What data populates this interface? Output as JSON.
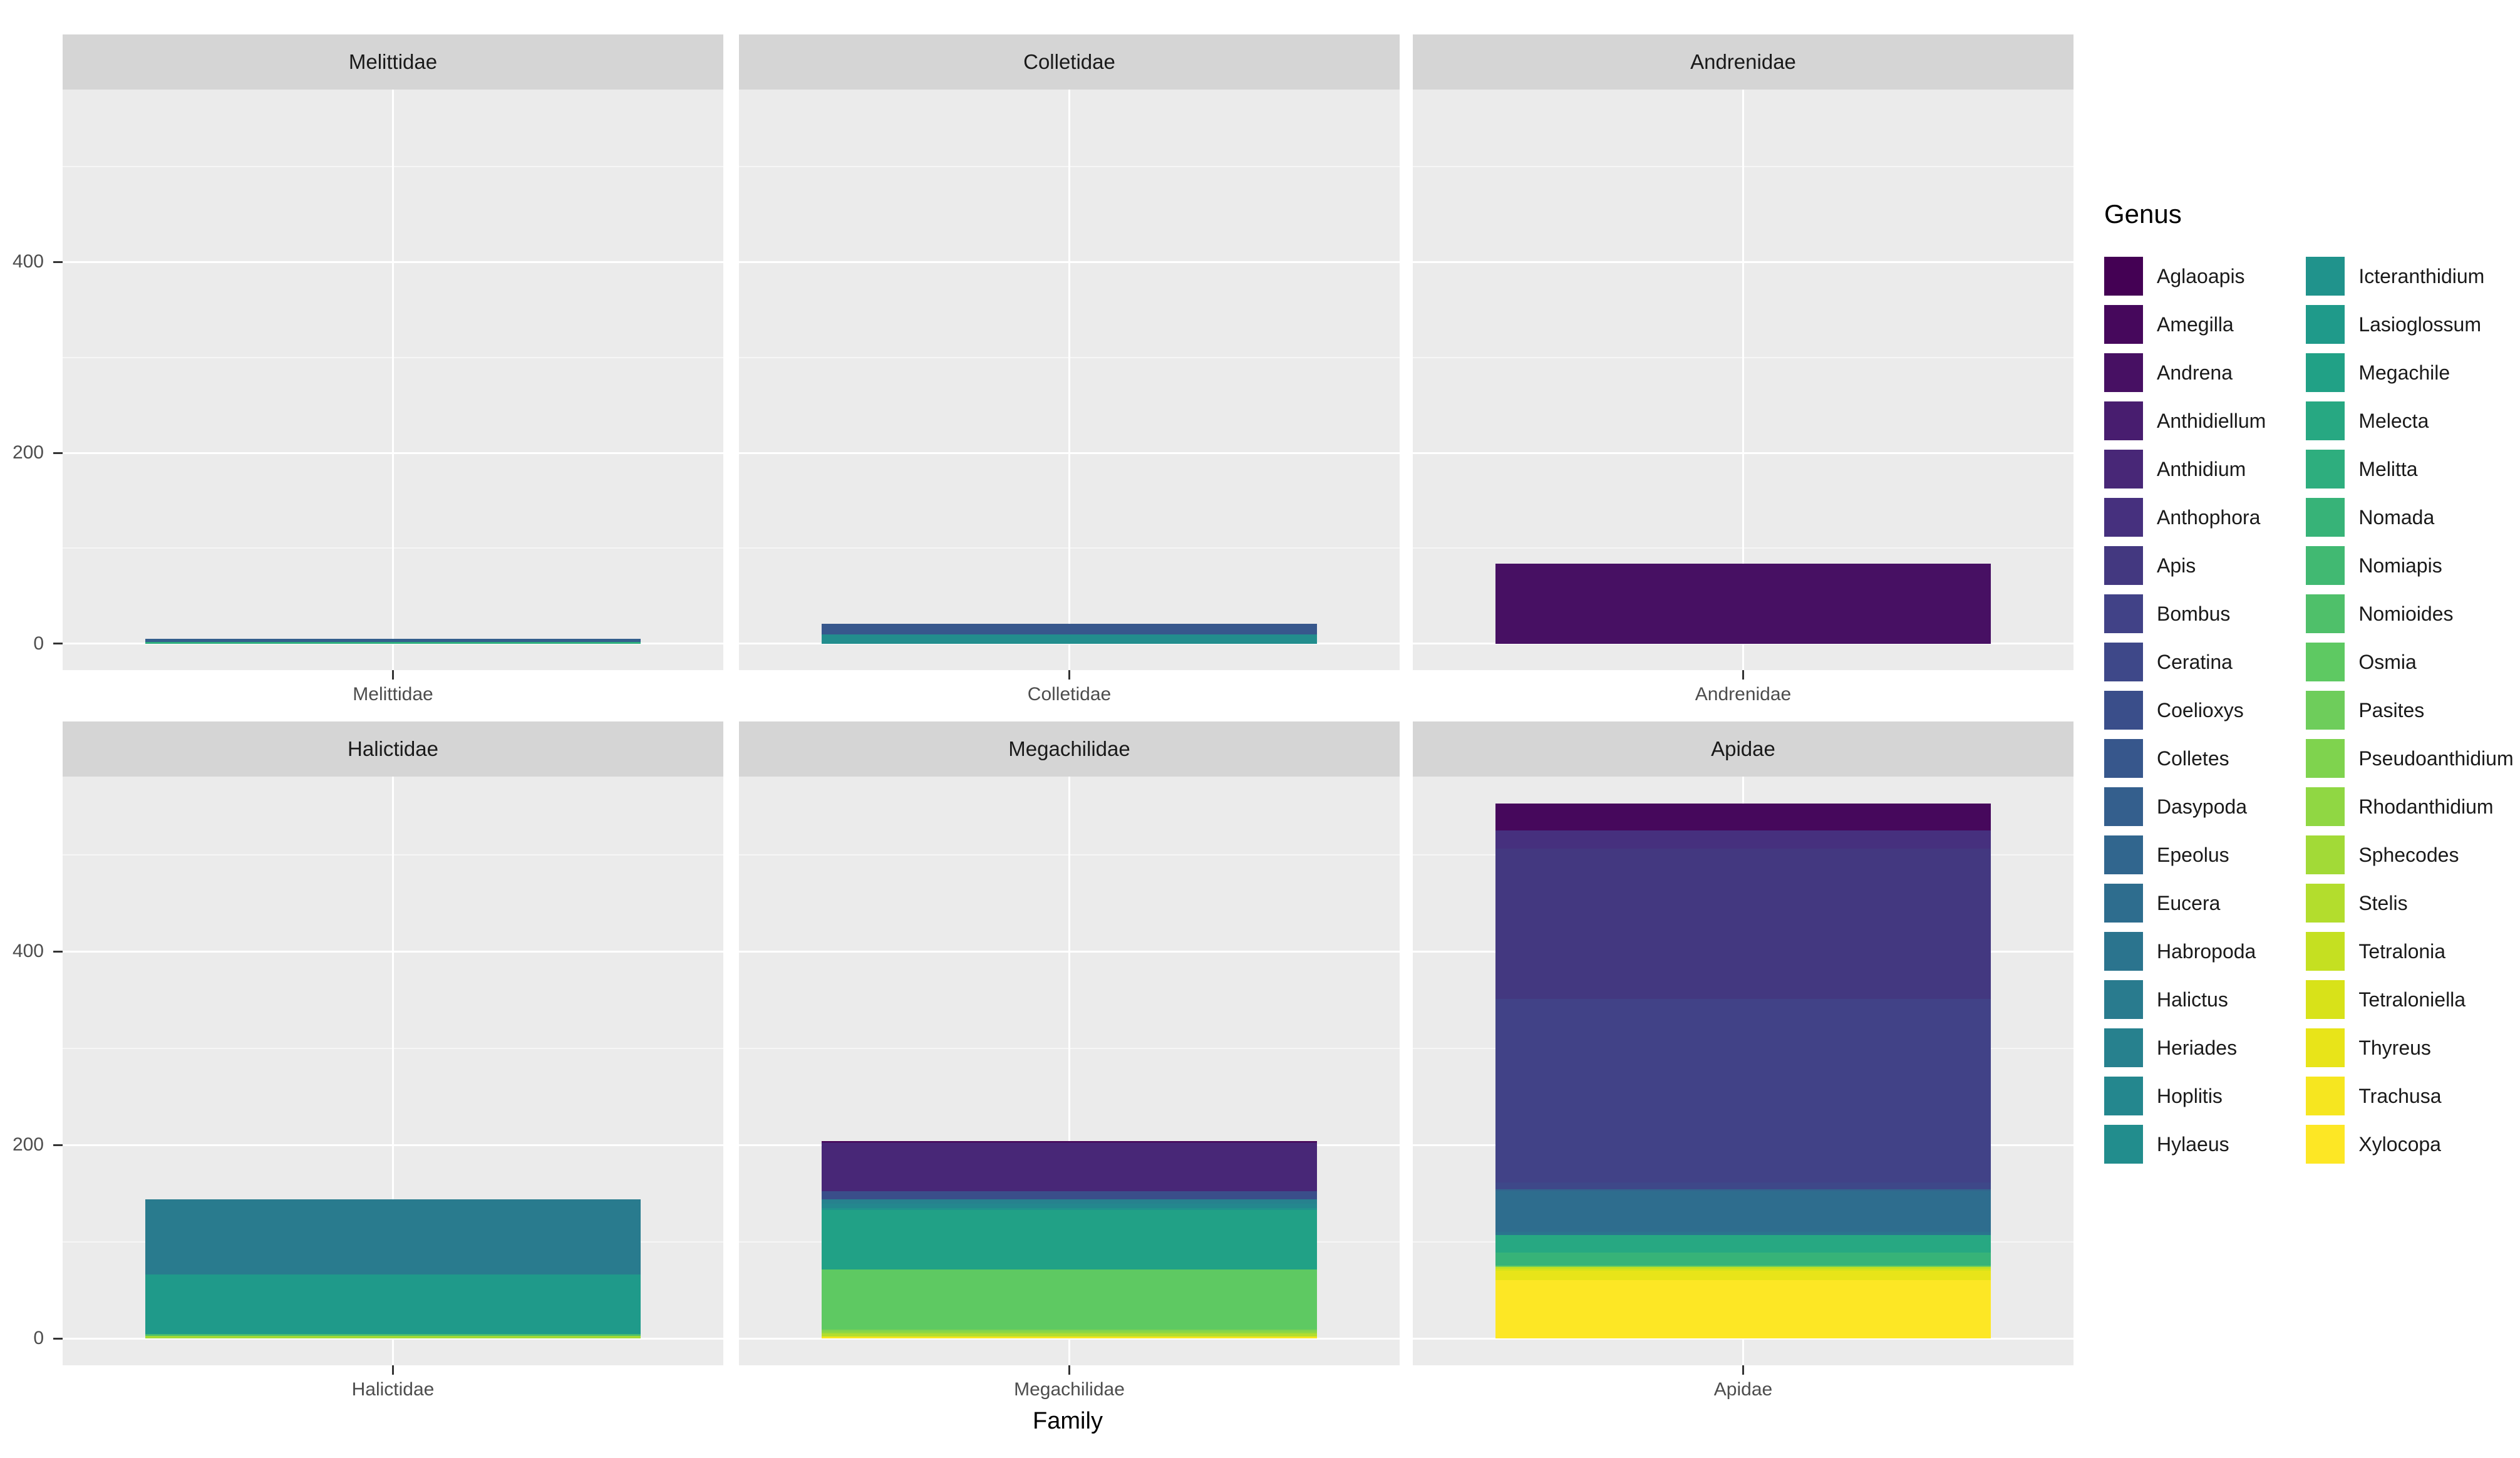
{
  "chart_data": {
    "type": "bar",
    "subtype": "stacked-faceted",
    "title": "",
    "xlabel": "Family",
    "ylabel": "",
    "legend_title": "Genus",
    "y_ticks": [
      0,
      200,
      400
    ],
    "y_minor_ticks": [
      100,
      300,
      500
    ],
    "ylim": [
      -27.65,
      580.65
    ],
    "grid": true,
    "legend_position": "right",
    "facets": [
      {
        "family": "Melittidae",
        "row": 0,
        "col": 0
      },
      {
        "family": "Colletidae",
        "row": 0,
        "col": 1
      },
      {
        "family": "Andrenidae",
        "row": 0,
        "col": 2
      },
      {
        "family": "Halictidae",
        "row": 1,
        "col": 0
      },
      {
        "family": "Megachilidae",
        "row": 1,
        "col": 1
      },
      {
        "family": "Apidae",
        "row": 1,
        "col": 2
      }
    ],
    "genera": [
      {
        "name": "Aglaoapis",
        "color": "#440154"
      },
      {
        "name": "Amegilla",
        "color": "#46085c"
      },
      {
        "name": "Andrena",
        "color": "#471063"
      },
      {
        "name": "Anthidiellum",
        "color": "#481d6f"
      },
      {
        "name": "Anthidium",
        "color": "#482777"
      },
      {
        "name": "Anthophora",
        "color": "#46307e"
      },
      {
        "name": "Apis",
        "color": "#433880"
      },
      {
        "name": "Bombus",
        "color": "#414287"
      },
      {
        "name": "Ceratina",
        "color": "#3e4889"
      },
      {
        "name": "Coelioxys",
        "color": "#3a4e8a"
      },
      {
        "name": "Colletes",
        "color": "#37578c"
      },
      {
        "name": "Dasypoda",
        "color": "#345f8d"
      },
      {
        "name": "Epeolus",
        "color": "#31668e"
      },
      {
        "name": "Eucera",
        "color": "#2e6d8e"
      },
      {
        "name": "Habropoda",
        "color": "#2b748e"
      },
      {
        "name": "Halictus",
        "color": "#297b8e"
      },
      {
        "name": "Heriades",
        "color": "#27818e"
      },
      {
        "name": "Hoplitis",
        "color": "#24878e"
      },
      {
        "name": "Hylaeus",
        "color": "#228d8d"
      },
      {
        "name": "Icteranthidium",
        "color": "#20938c"
      },
      {
        "name": "Lasioglossum",
        "color": "#1f9a8a"
      },
      {
        "name": "Megachile",
        "color": "#21a186"
      },
      {
        "name": "Melecta",
        "color": "#27a882"
      },
      {
        "name": "Melitta",
        "color": "#2eae7e"
      },
      {
        "name": "Nomada",
        "color": "#37b378"
      },
      {
        "name": "Nomiapis",
        "color": "#41b972"
      },
      {
        "name": "Nomioides",
        "color": "#4fc06a"
      },
      {
        "name": "Osmia",
        "color": "#5ec962"
      },
      {
        "name": "Pasites",
        "color": "#6ecd5b"
      },
      {
        "name": "Pseudoanthidium",
        "color": "#7fd34e"
      },
      {
        "name": "Rhodanthidium",
        "color": "#90d743"
      },
      {
        "name": "Sphecodes",
        "color": "#a2da37"
      },
      {
        "name": "Stelis",
        "color": "#b3dd2d"
      },
      {
        "name": "Tetralonia",
        "color": "#c5e021"
      },
      {
        "name": "Tetraloniella",
        "color": "#d8e219"
      },
      {
        "name": "Thyreus",
        "color": "#e8e419"
      },
      {
        "name": "Trachusa",
        "color": "#f6e620"
      },
      {
        "name": "Xylocopa",
        "color": "#fde725"
      }
    ],
    "stacks": {
      "Melittidae": [
        [
          "Dasypoda",
          3
        ],
        [
          "Melitta",
          2
        ]
      ],
      "Colletidae": [
        [
          "Colletes",
          11
        ],
        [
          "Hylaeus",
          10
        ]
      ],
      "Andrenidae": [
        [
          "Andrena",
          84
        ]
      ],
      "Halictidae": [
        [
          "Halictus",
          78
        ],
        [
          "Lasioglossum",
          61
        ],
        [
          "Nomiapis",
          1
        ],
        [
          "Nomioides",
          1
        ],
        [
          "Sphecodes",
          3
        ]
      ],
      "Megachilidae": [
        [
          "Aglaoapis",
          1
        ],
        [
          "Anthidiellum",
          1
        ],
        [
          "Anthidium",
          50
        ],
        [
          "Coelioxys",
          8
        ],
        [
          "Heriades",
          5
        ],
        [
          "Hoplitis",
          4
        ],
        [
          "Icteranthidium",
          2
        ],
        [
          "Megachile",
          62
        ],
        [
          "Osmia",
          62
        ],
        [
          "Pseudoanthidium",
          2
        ],
        [
          "Rhodanthidium",
          2
        ],
        [
          "Stelis",
          3
        ],
        [
          "Trachusa",
          2
        ]
      ],
      "Apidae": [
        [
          "Amegilla",
          28
        ],
        [
          "Anthophora",
          19
        ],
        [
          "Apis",
          155
        ],
        [
          "Bombus",
          190
        ],
        [
          "Ceratina",
          7
        ],
        [
          "Epeolus",
          2
        ],
        [
          "Eucera",
          42
        ],
        [
          "Habropoda",
          3
        ],
        [
          "Melecta",
          18
        ],
        [
          "Nomada",
          14
        ],
        [
          "Pasites",
          1
        ],
        [
          "Tetralonia",
          2
        ],
        [
          "Tetraloniella",
          2
        ],
        [
          "Thyreus",
          10
        ],
        [
          "Xylocopa",
          60
        ]
      ]
    },
    "legend_columns": [
      [
        "Aglaoapis",
        "Amegilla",
        "Andrena",
        "Anthidiellum",
        "Anthidium",
        "Anthophora",
        "Apis",
        "Bombus",
        "Ceratina",
        "Coelioxys",
        "Colletes",
        "Dasypoda",
        "Epeolus",
        "Eucera",
        "Habropoda",
        "Halictus",
        "Heriades",
        "Hoplitis",
        "Hylaeus"
      ],
      [
        "Icteranthidium",
        "Lasioglossum",
        "Megachile",
        "Melecta",
        "Melitta",
        "Nomada",
        "Nomiapis",
        "Nomioides",
        "Osmia",
        "Pasites",
        "Pseudoanthidium",
        "Rhodanthidium",
        "Sphecodes",
        "Stelis",
        "Tetralonia",
        "Tetraloniella",
        "Thyreus",
        "Trachusa",
        "Xylocopa"
      ]
    ]
  }
}
